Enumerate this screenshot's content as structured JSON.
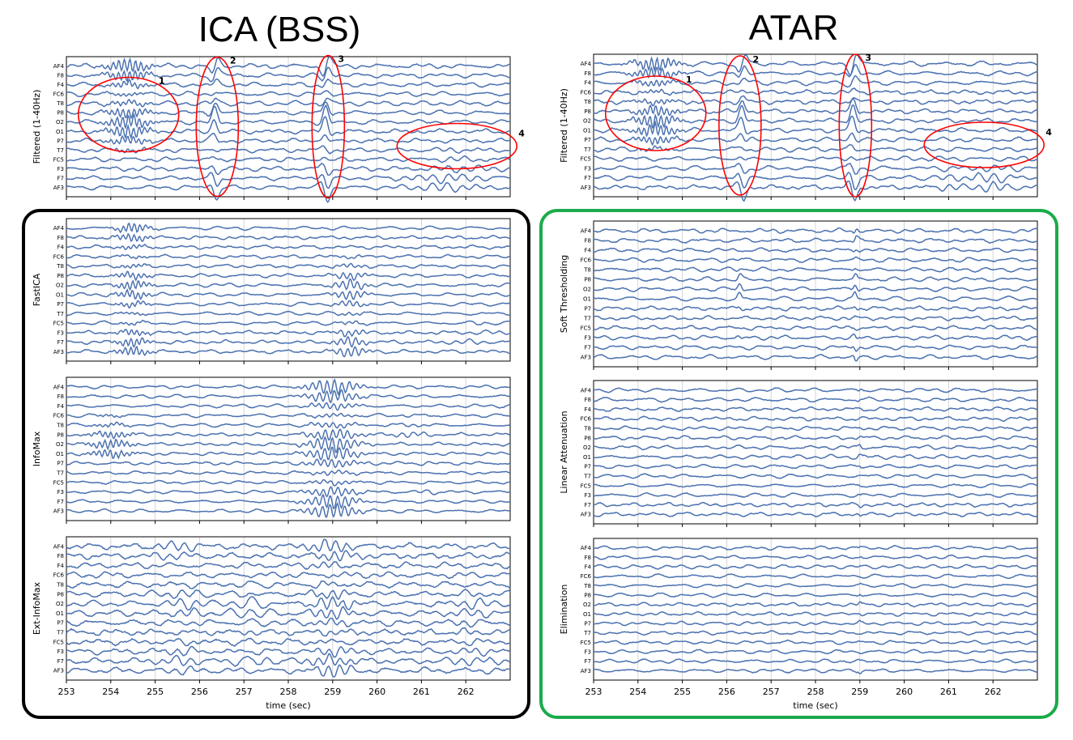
{
  "titles": {
    "left": "ICA (BSS)",
    "right": "ATAR"
  },
  "colors": {
    "trace": "#4c72b0",
    "annotation": "#ff0000",
    "ica_frame": "#000000",
    "atar_frame": "#1aab4b",
    "grid": "#cccccc"
  },
  "chart_data": [
    {
      "type": "line",
      "column": "left",
      "ylabel": "Filtered (1-40Hz)",
      "show_xticks": false,
      "annotations": [
        {
          "label": "1",
          "x": 254.4
        },
        {
          "label": "2",
          "x": 256.4
        },
        {
          "label": "3",
          "x": 258.9
        },
        {
          "label": "4",
          "x": 261.8
        }
      ]
    },
    {
      "type": "line",
      "column": "left",
      "ylabel": "FastICA",
      "show_xticks": false
    },
    {
      "type": "line",
      "column": "left",
      "ylabel": "InfoMax",
      "show_xticks": false
    },
    {
      "type": "line",
      "column": "left",
      "ylabel": "Ext-InfoMax",
      "show_xticks": true,
      "xlabel": "time (sec)"
    },
    {
      "type": "line",
      "column": "right",
      "ylabel": "Filtered (1-40Hz)",
      "show_xticks": false,
      "annotations": [
        {
          "label": "1",
          "x": 254.4
        },
        {
          "label": "2",
          "x": 256.3
        },
        {
          "label": "3",
          "x": 258.9
        },
        {
          "label": "4",
          "x": 261.8
        }
      ]
    },
    {
      "type": "line",
      "column": "right",
      "ylabel": "Soft Thresholding",
      "show_xticks": false
    },
    {
      "type": "line",
      "column": "right",
      "ylabel": "Linear Attenuation",
      "show_xticks": false
    },
    {
      "type": "line",
      "column": "right",
      "ylabel": "Elimination",
      "show_xticks": true,
      "xlabel": "time (sec)"
    }
  ],
  "channels": [
    "AF4",
    "F8",
    "F4",
    "FC6",
    "T8",
    "P8",
    "O2",
    "O1",
    "P7",
    "T7",
    "FC5",
    "F3",
    "F7",
    "AF3"
  ],
  "x_range": [
    253,
    263
  ],
  "x_ticks": [
    "253",
    "254",
    "255",
    "256",
    "257",
    "258",
    "259",
    "260",
    "261",
    "262"
  ]
}
